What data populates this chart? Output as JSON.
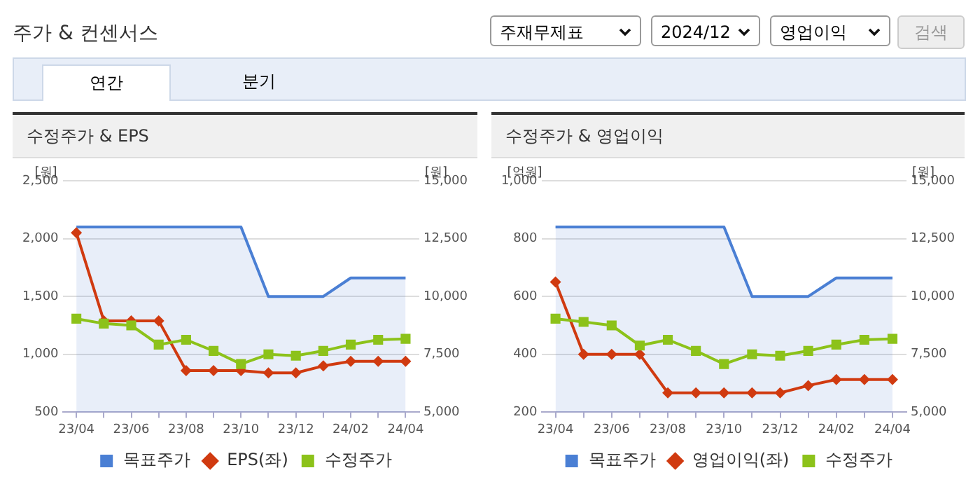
{
  "chart_data": [
    {
      "type": "other",
      "title": "주가 & 컨센서스",
      "annotations": [
        "주재무제표",
        "2024/12",
        "영업이익",
        "검색",
        "연간",
        "분기"
      ]
    },
    {
      "type": "line",
      "title": "수정주가 & EPS",
      "ylabel": "[원]",
      "y2label": "[원]",
      "categories": [
        "23/04",
        null,
        "23/06",
        null,
        "23/08",
        null,
        "23/10",
        null,
        "23/12",
        null,
        "24/02",
        null,
        "24/04"
      ],
      "series": [
        {
          "name": "목표주가",
          "type": "area",
          "axis": "y2",
          "color": "#4a7fd4",
          "marker": "none",
          "values": [
            13000,
            13000,
            13000,
            13000,
            13000,
            13000,
            13000,
            10000,
            10000,
            10000,
            10800,
            10800,
            10800
          ]
        },
        {
          "name": "EPS(좌)",
          "color": "#d03a10",
          "marker": "diamond",
          "values": [
            2050,
            1290,
            1290,
            1290,
            860,
            860,
            860,
            840,
            840,
            900,
            940,
            940,
            940
          ]
        },
        {
          "name": "수정주가",
          "axis": "y2",
          "color": "#8cc21a",
          "marker": "square",
          "values": [
            9040,
            8830,
            8750,
            7920,
            8130,
            7650,
            7080,
            7500,
            7440,
            7650,
            7920,
            8130,
            8170
          ]
        }
      ],
      "ylim": [
        500,
        2500
      ],
      "yticks": [
        500,
        {
          "value": 1000,
          "label": "1,000"
        },
        {
          "value": 1500,
          "label": "1,500"
        },
        {
          "value": 2000,
          "label": "2,000"
        },
        {
          "value": 2500,
          "label": "2,500"
        }
      ],
      "y2lim": [
        5000,
        15000
      ],
      "y2ticks": [
        {
          "value": 5000,
          "label": "5,000"
        },
        {
          "value": 7500,
          "label": "7,500"
        },
        {
          "value": 10000,
          "label": "10,000"
        },
        {
          "value": 12500,
          "label": "12,500"
        },
        {
          "value": 15000,
          "label": "15,000"
        }
      ],
      "grid": "y",
      "legend": "bottom"
    },
    {
      "type": "line",
      "title": "수정주가 & 영업이익",
      "ylabel": "[억원]",
      "y2label": "[원]",
      "categories": [
        "23/04",
        null,
        "23/06",
        null,
        "23/08",
        null,
        "23/10",
        null,
        "23/12",
        null,
        "24/02",
        null,
        "24/04"
      ],
      "series": [
        {
          "name": "목표주가",
          "type": "area",
          "axis": "y2",
          "color": "#4a7fd4",
          "marker": "none",
          "values": [
            13000,
            13000,
            13000,
            13000,
            13000,
            13000,
            13000,
            10000,
            10000,
            10000,
            10800,
            10800,
            10800
          ]
        },
        {
          "name": "영업이익(좌)",
          "color": "#d03a10",
          "marker": "diamond",
          "values": [
            650,
            400,
            400,
            400,
            267,
            267,
            267,
            267,
            267,
            292,
            313,
            313,
            313
          ]
        },
        {
          "name": "수정주가",
          "axis": "y2",
          "color": "#8cc21a",
          "marker": "square",
          "values": [
            9040,
            8900,
            8750,
            7880,
            8130,
            7650,
            7080,
            7500,
            7440,
            7650,
            7920,
            8130,
            8170
          ]
        }
      ],
      "ylim": [
        200,
        1000
      ],
      "yticks": [
        200,
        400,
        600,
        800,
        {
          "value": 1000,
          "label": "1,000"
        }
      ],
      "y2lim": [
        5000,
        15000
      ],
      "y2ticks": [
        {
          "value": 5000,
          "label": "5,000"
        },
        {
          "value": 7500,
          "label": "7,500"
        },
        {
          "value": 10000,
          "label": "10,000"
        },
        {
          "value": 12500,
          "label": "12,500"
        },
        {
          "value": 15000,
          "label": "15,000"
        }
      ],
      "grid": "y",
      "legend": "bottom"
    }
  ]
}
